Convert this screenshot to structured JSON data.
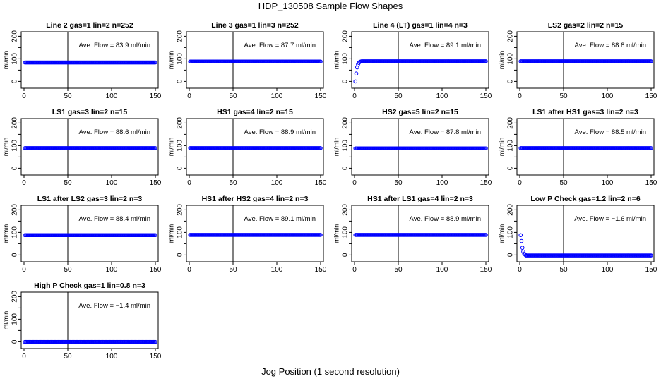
{
  "figure": {
    "title": "HDP_130508  Sample Flow Shapes",
    "xlabel": "Jog Position (1 second resolution)"
  },
  "colors": {
    "points": "#0000ff",
    "axes": "#000000",
    "background": "#ffffff"
  },
  "chart_data": [
    {
      "type": "scatter",
      "title": "Line 2 gas=1 lin=2 n=252",
      "ylabel": "ml/min",
      "annotation": "Ave. Flow = 83.9  ml/min",
      "xlim": [
        0,
        150
      ],
      "ylim": [
        -30,
        220
      ],
      "xticks": [
        0,
        50,
        100,
        150
      ],
      "yticks": [
        0,
        100,
        200
      ],
      "yticks_minor": [
        50,
        150
      ],
      "vline_x": 50,
      "series": [
        {
          "shape": "flat",
          "x_start": 1,
          "x_end": 150,
          "value": 84
        }
      ]
    },
    {
      "type": "scatter",
      "title": "Line 3 gas=1 lin=3 n=252",
      "ylabel": "ml/min",
      "annotation": "Ave. Flow = 87.7  ml/min",
      "xlim": [
        0,
        150
      ],
      "ylim": [
        -30,
        220
      ],
      "xticks": [
        0,
        50,
        100,
        150
      ],
      "yticks": [
        0,
        100,
        200
      ],
      "yticks_minor": [
        50,
        150
      ],
      "vline_x": 50,
      "series": [
        {
          "shape": "flat",
          "x_start": 1,
          "x_end": 150,
          "value": 88
        }
      ]
    },
    {
      "type": "scatter",
      "title": "Line 4 (LT) gas=1 lin=4 n=3",
      "ylabel": "ml/min",
      "annotation": "Ave. Flow = 89.1  ml/min",
      "xlim": [
        0,
        150
      ],
      "ylim": [
        -30,
        220
      ],
      "xticks": [
        0,
        50,
        100,
        150
      ],
      "yticks": [
        0,
        100,
        200
      ],
      "yticks_minor": [
        50,
        150
      ],
      "vline_x": 50,
      "series": [
        {
          "shape": "rise",
          "x_start": 1,
          "x_end": 150,
          "value": 89,
          "early_points": [
            [
              1,
              0
            ],
            [
              2,
              35
            ],
            [
              3,
              62
            ],
            [
              4,
              75
            ],
            [
              5,
              82
            ],
            [
              6,
              86
            ],
            [
              7,
              88
            ]
          ]
        }
      ]
    },
    {
      "type": "scatter",
      "title": "LS2 gas=2 lin=2 n=15",
      "ylabel": "ml/min",
      "annotation": "Ave. Flow = 88.8  ml/min",
      "xlim": [
        0,
        150
      ],
      "ylim": [
        -30,
        220
      ],
      "xticks": [
        0,
        50,
        100,
        150
      ],
      "yticks": [
        0,
        100,
        200
      ],
      "yticks_minor": [
        50,
        150
      ],
      "vline_x": 50,
      "series": [
        {
          "shape": "flat",
          "x_start": 1,
          "x_end": 150,
          "value": 89
        }
      ]
    },
    {
      "type": "scatter",
      "title": "LS1 gas=3 lin=2 n=15",
      "ylabel": "ml/min",
      "annotation": "Ave. Flow = 88.6  ml/min",
      "xlim": [
        0,
        150
      ],
      "ylim": [
        -30,
        220
      ],
      "xticks": [
        0,
        50,
        100,
        150
      ],
      "yticks": [
        0,
        100,
        200
      ],
      "yticks_minor": [
        50,
        150
      ],
      "vline_x": 50,
      "series": [
        {
          "shape": "flat",
          "x_start": 1,
          "x_end": 150,
          "value": 89
        }
      ]
    },
    {
      "type": "scatter",
      "title": "HS1 gas=4 lin=2 n=15",
      "ylabel": "ml/min",
      "annotation": "Ave. Flow = 88.9  ml/min",
      "xlim": [
        0,
        150
      ],
      "ylim": [
        -30,
        220
      ],
      "xticks": [
        0,
        50,
        100,
        150
      ],
      "yticks": [
        0,
        100,
        200
      ],
      "yticks_minor": [
        50,
        150
      ],
      "vline_x": 50,
      "series": [
        {
          "shape": "flat",
          "x_start": 1,
          "x_end": 150,
          "value": 89
        }
      ]
    },
    {
      "type": "scatter",
      "title": "HS2 gas=5 lin=2 n=15",
      "ylabel": "ml/min",
      "annotation": "Ave. Flow = 87.8  ml/min",
      "xlim": [
        0,
        150
      ],
      "ylim": [
        -30,
        220
      ],
      "xticks": [
        0,
        50,
        100,
        150
      ],
      "yticks": [
        0,
        100,
        200
      ],
      "yticks_minor": [
        50,
        150
      ],
      "vline_x": 50,
      "series": [
        {
          "shape": "flat",
          "x_start": 1,
          "x_end": 150,
          "value": 88
        }
      ]
    },
    {
      "type": "scatter",
      "title": "LS1 after HS1 gas=3 lin=2 n=3",
      "ylabel": "ml/min",
      "annotation": "Ave. Flow = 88.5  ml/min",
      "xlim": [
        0,
        150
      ],
      "ylim": [
        -30,
        220
      ],
      "xticks": [
        0,
        50,
        100,
        150
      ],
      "yticks": [
        0,
        100,
        200
      ],
      "yticks_minor": [
        50,
        150
      ],
      "vline_x": 50,
      "series": [
        {
          "shape": "flat",
          "x_start": 1,
          "x_end": 150,
          "value": 89
        }
      ]
    },
    {
      "type": "scatter",
      "title": "LS1 after LS2 gas=3 lin=2 n=3",
      "ylabel": "ml/min",
      "annotation": "Ave. Flow = 88.4  ml/min",
      "xlim": [
        0,
        150
      ],
      "ylim": [
        -30,
        220
      ],
      "xticks": [
        0,
        50,
        100,
        150
      ],
      "yticks": [
        0,
        100,
        200
      ],
      "yticks_minor": [
        50,
        150
      ],
      "vline_x": 50,
      "series": [
        {
          "shape": "flat",
          "x_start": 1,
          "x_end": 150,
          "value": 88
        }
      ]
    },
    {
      "type": "scatter",
      "title": "HS1 after HS2 gas=4 lin=2 n=3",
      "ylabel": "ml/min",
      "annotation": "Ave. Flow = 89.1  ml/min",
      "xlim": [
        0,
        150
      ],
      "ylim": [
        -30,
        220
      ],
      "xticks": [
        0,
        50,
        100,
        150
      ],
      "yticks": [
        0,
        100,
        200
      ],
      "yticks_minor": [
        50,
        150
      ],
      "vline_x": 50,
      "series": [
        {
          "shape": "flat",
          "x_start": 1,
          "x_end": 150,
          "value": 89
        }
      ]
    },
    {
      "type": "scatter",
      "title": "HS1 after LS1 gas=4 lin=2 n=3",
      "ylabel": "ml/min",
      "annotation": "Ave. Flow = 88.9  ml/min",
      "xlim": [
        0,
        150
      ],
      "ylim": [
        -30,
        220
      ],
      "xticks": [
        0,
        50,
        100,
        150
      ],
      "yticks": [
        0,
        100,
        200
      ],
      "yticks_minor": [
        50,
        150
      ],
      "vline_x": 50,
      "series": [
        {
          "shape": "flat",
          "x_start": 1,
          "x_end": 150,
          "value": 89
        }
      ]
    },
    {
      "type": "scatter",
      "title": "Low P Check gas=1.2 lin=2 n=6",
      "ylabel": "ml/min",
      "annotation": "Ave. Flow = −1.6  ml/min",
      "xlim": [
        0,
        150
      ],
      "ylim": [
        -30,
        220
      ],
      "xticks": [
        0,
        50,
        100,
        150
      ],
      "yticks": [
        0,
        100,
        200
      ],
      "yticks_minor": [
        50,
        150
      ],
      "vline_x": 50,
      "series": [
        {
          "shape": "decay",
          "x_start": 1,
          "x_end": 150,
          "value": -2,
          "early_points": [
            [
              1,
              88
            ],
            [
              2,
              62
            ],
            [
              3,
              32
            ],
            [
              4,
              15
            ],
            [
              5,
              6
            ],
            [
              6,
              2
            ]
          ]
        }
      ]
    },
    {
      "type": "scatter",
      "title": "High P Check gas=1 lin=0.8 n=3",
      "ylabel": "ml/min",
      "annotation": "Ave. Flow = −1.4  ml/min",
      "xlim": [
        0,
        150
      ],
      "ylim": [
        -30,
        220
      ],
      "xticks": [
        0,
        50,
        100,
        150
      ],
      "yticks": [
        0,
        100,
        200
      ],
      "yticks_minor": [
        50,
        150
      ],
      "vline_x": 50,
      "series": [
        {
          "shape": "flat",
          "x_start": 1,
          "x_end": 150,
          "value": -1
        }
      ]
    }
  ]
}
